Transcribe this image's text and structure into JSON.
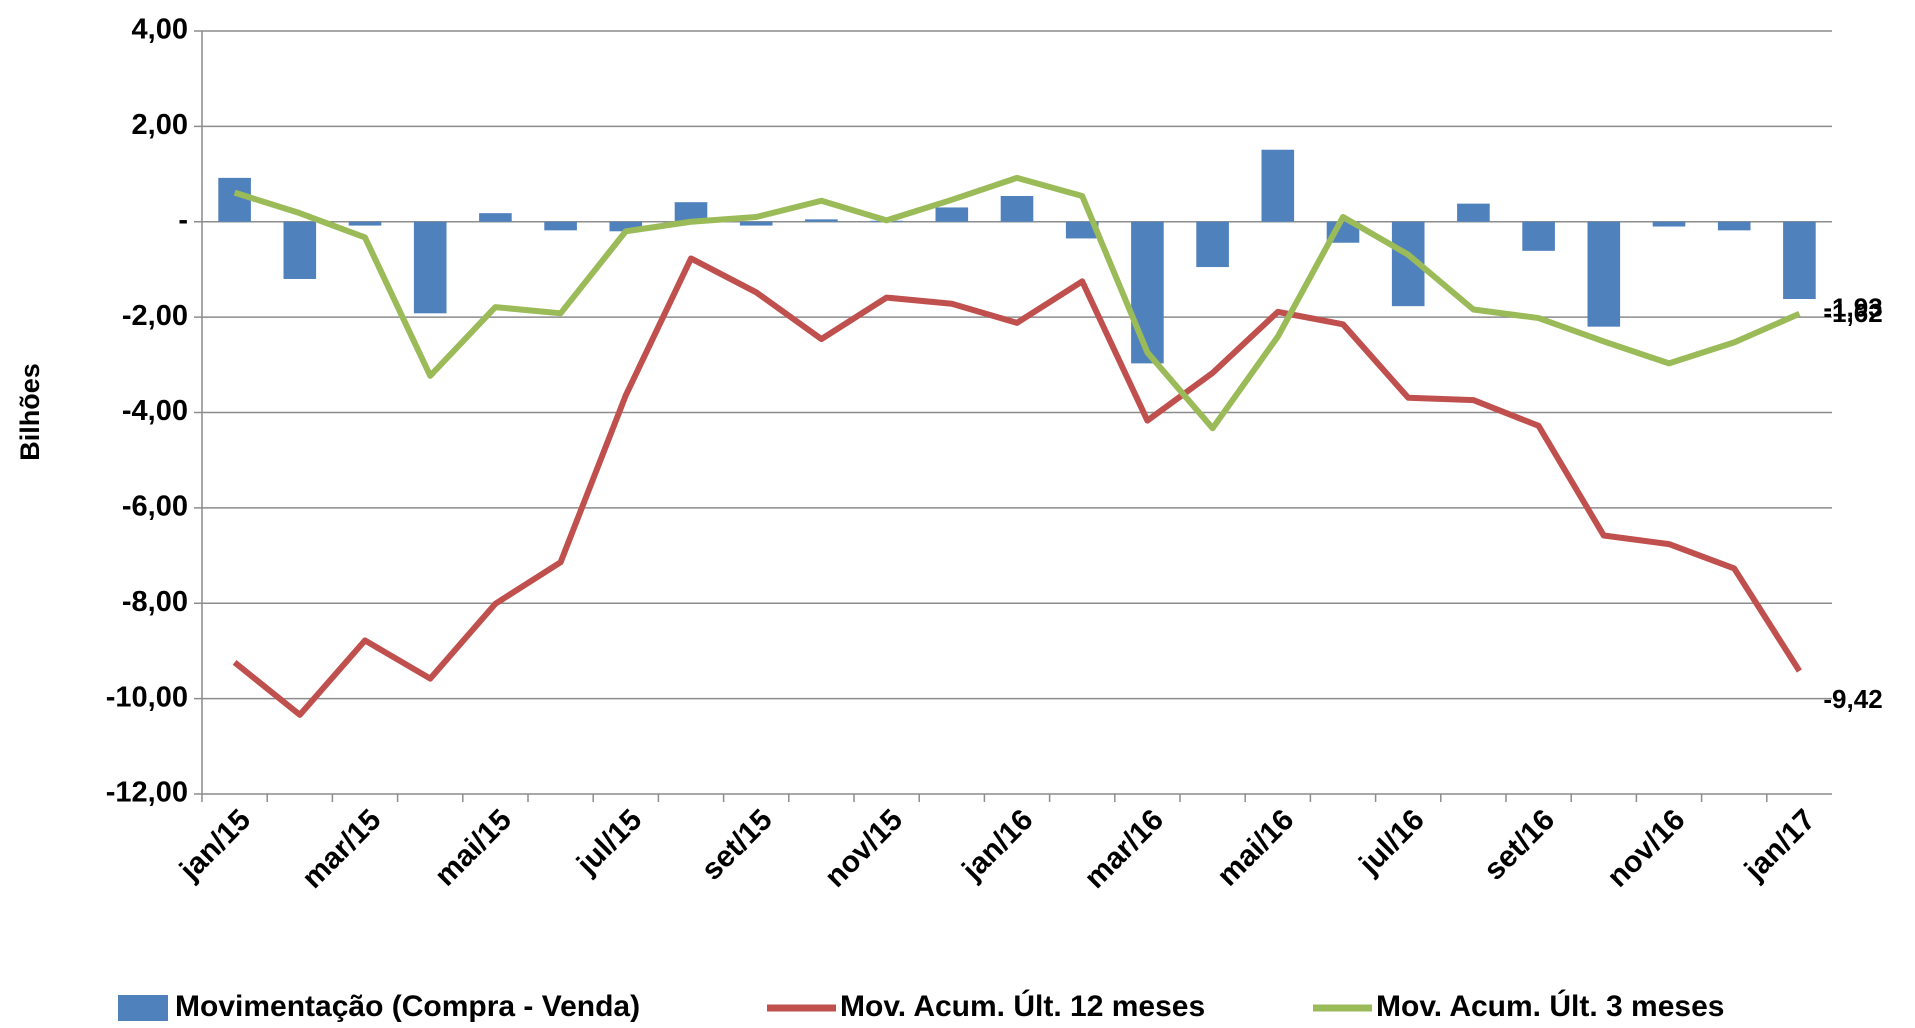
{
  "chart_data": {
    "type": "bar-line",
    "y_label": "Bilhões",
    "categories": [
      "jan/15",
      null,
      "mar/15",
      null,
      "mai/15",
      null,
      "jul/15",
      null,
      "set/15",
      null,
      "nov/15",
      null,
      "jan/16",
      null,
      "mar/16",
      null,
      "mai/16",
      null,
      "jul/16",
      null,
      "set/16",
      null,
      "nov/16",
      null,
      "jan/17"
    ],
    "ylim": [
      -12,
      4
    ],
    "yticks": [
      {
        "value": -12,
        "label": "-12,00"
      },
      {
        "value": -10,
        "label": "-10,00"
      },
      {
        "value": -8,
        "label": "-8,00"
      },
      {
        "value": -6,
        "label": "-6,00"
      },
      {
        "value": -4,
        "label": "-4,00"
      },
      {
        "value": -2,
        "label": "-2,00"
      },
      {
        "value": 0,
        "label": "-"
      },
      {
        "value": 2,
        "label": "2,00"
      },
      {
        "value": 4,
        "label": "4,00"
      }
    ],
    "grid": true,
    "legend": "bottom",
    "series": [
      {
        "name": "Movimentação (Compra - Venda)",
        "kind": "bar",
        "color": "#4f81bd",
        "values": [
          0.92,
          -1.2,
          -0.08,
          -1.92,
          0.18,
          -0.18,
          -0.2,
          0.41,
          -0.08,
          0.05,
          0.02,
          0.3,
          0.54,
          -0.35,
          -2.97,
          -0.95,
          1.51,
          -0.44,
          -1.77,
          0.38,
          -0.61,
          -2.2,
          -0.1,
          -0.18,
          -1.62
        ],
        "value_labels": [
          null,
          null,
          null,
          null,
          null,
          null,
          null,
          null,
          null,
          null,
          null,
          null,
          null,
          null,
          null,
          null,
          null,
          null,
          null,
          null,
          null,
          null,
          null,
          null,
          "-1,62"
        ]
      },
      {
        "name": "Mov. Acum. Últ. 12 meses",
        "kind": "line",
        "color": "#c0504d",
        "values": [
          -9.24,
          -10.34,
          -8.78,
          -9.58,
          -8.01,
          -7.14,
          -3.64,
          -0.77,
          -1.48,
          -2.46,
          -1.59,
          -1.72,
          -2.12,
          -1.25,
          -4.17,
          -3.17,
          -1.89,
          -2.15,
          -3.69,
          -3.74,
          -4.28,
          -6.58,
          -6.76,
          -7.27,
          -9.42
        ],
        "value_labels": [
          null,
          null,
          null,
          null,
          null,
          null,
          null,
          null,
          null,
          null,
          null,
          null,
          null,
          null,
          null,
          null,
          null,
          null,
          null,
          null,
          null,
          null,
          null,
          null,
          "-9,42"
        ]
      },
      {
        "name": "Mov. Acum. Últ. 3 meses",
        "kind": "line",
        "color": "#9bbb59",
        "values": [
          0.61,
          0.18,
          -0.33,
          -3.23,
          -1.79,
          -1.92,
          -0.2,
          0,
          0.1,
          0.44,
          0.03,
          0.46,
          0.92,
          0.54,
          -2.74,
          -4.33,
          -2.41,
          0.1,
          -0.69,
          -1.84,
          -2.02,
          -2.51,
          -2.97,
          -2.53,
          -1.93
        ],
        "value_labels": [
          null,
          null,
          null,
          null,
          null,
          null,
          null,
          null,
          null,
          null,
          null,
          null,
          null,
          null,
          null,
          null,
          null,
          null,
          null,
          null,
          null,
          null,
          null,
          null,
          "-1,93"
        ]
      }
    ]
  }
}
